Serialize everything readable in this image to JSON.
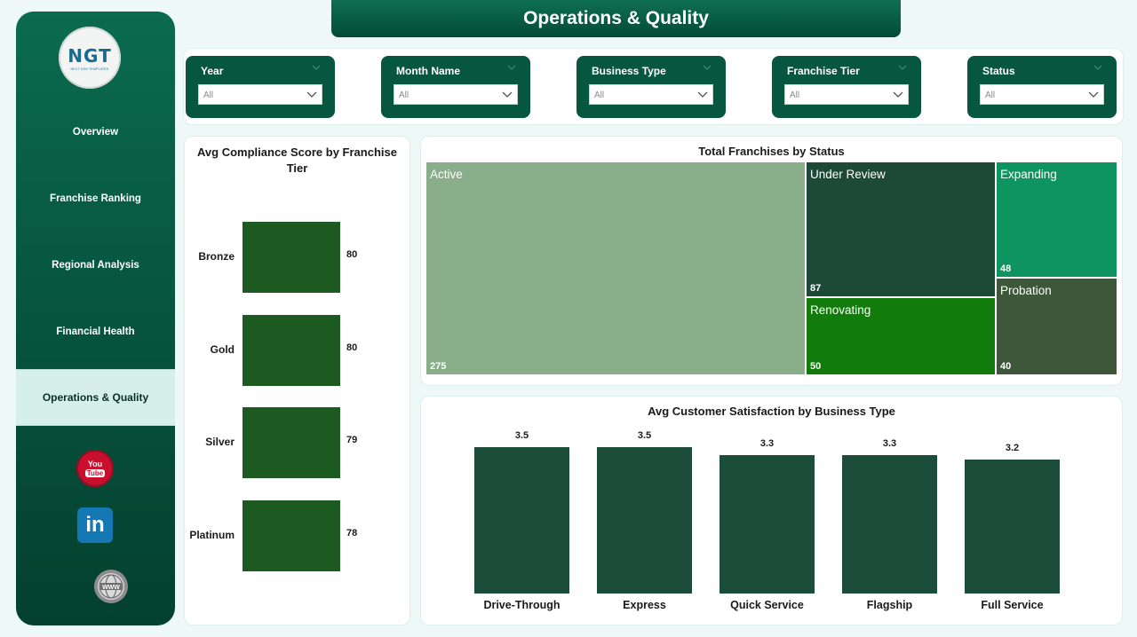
{
  "header": {
    "title": "Operations & Quality"
  },
  "logo": {
    "mark": "NGT",
    "subtitle": "NEXT GEN TEMPLATES"
  },
  "sidebar": {
    "items": [
      {
        "label": "Overview"
      },
      {
        "label": "Franchise Ranking"
      },
      {
        "label": "Regional Analysis"
      },
      {
        "label": "Financial Health"
      },
      {
        "label": "Operations & Quality",
        "active": true
      }
    ],
    "social": {
      "youtube_text_1": "You",
      "youtube_text_2": "Tube",
      "linkedin_text": "in"
    }
  },
  "filters": [
    {
      "label": "Year",
      "value": "All"
    },
    {
      "label": "Month Name",
      "value": "All"
    },
    {
      "label": "Business Type",
      "value": "All"
    },
    {
      "label": "Franchise Tier",
      "value": "All"
    },
    {
      "label": "Status",
      "value": "All"
    }
  ],
  "chart_data": [
    {
      "type": "bar",
      "orientation": "horizontal",
      "title": "Avg Compliance Score by Franchise Tier",
      "categories": [
        "Bronze",
        "Gold",
        "Silver",
        "Platinum"
      ],
      "values": [
        80,
        80,
        79,
        78
      ]
    },
    {
      "type": "treemap",
      "title": "Total Franchises by Status",
      "categories": [
        "Active",
        "Under Review",
        "Expanding",
        "Renovating",
        "Probation"
      ],
      "values": [
        275,
        87,
        48,
        50,
        40
      ],
      "colors": [
        "#8aae89",
        "#1d4a38",
        "#0e9460",
        "#117c0c",
        "#3e573a"
      ]
    },
    {
      "type": "bar",
      "title": "Avg Customer Satisfaction by Business Type",
      "categories": [
        "Drive-Through",
        "Express",
        "Quick Service",
        "Flagship",
        "Full Service"
      ],
      "values": [
        3.5,
        3.5,
        3.3,
        3.3,
        3.2
      ]
    }
  ]
}
